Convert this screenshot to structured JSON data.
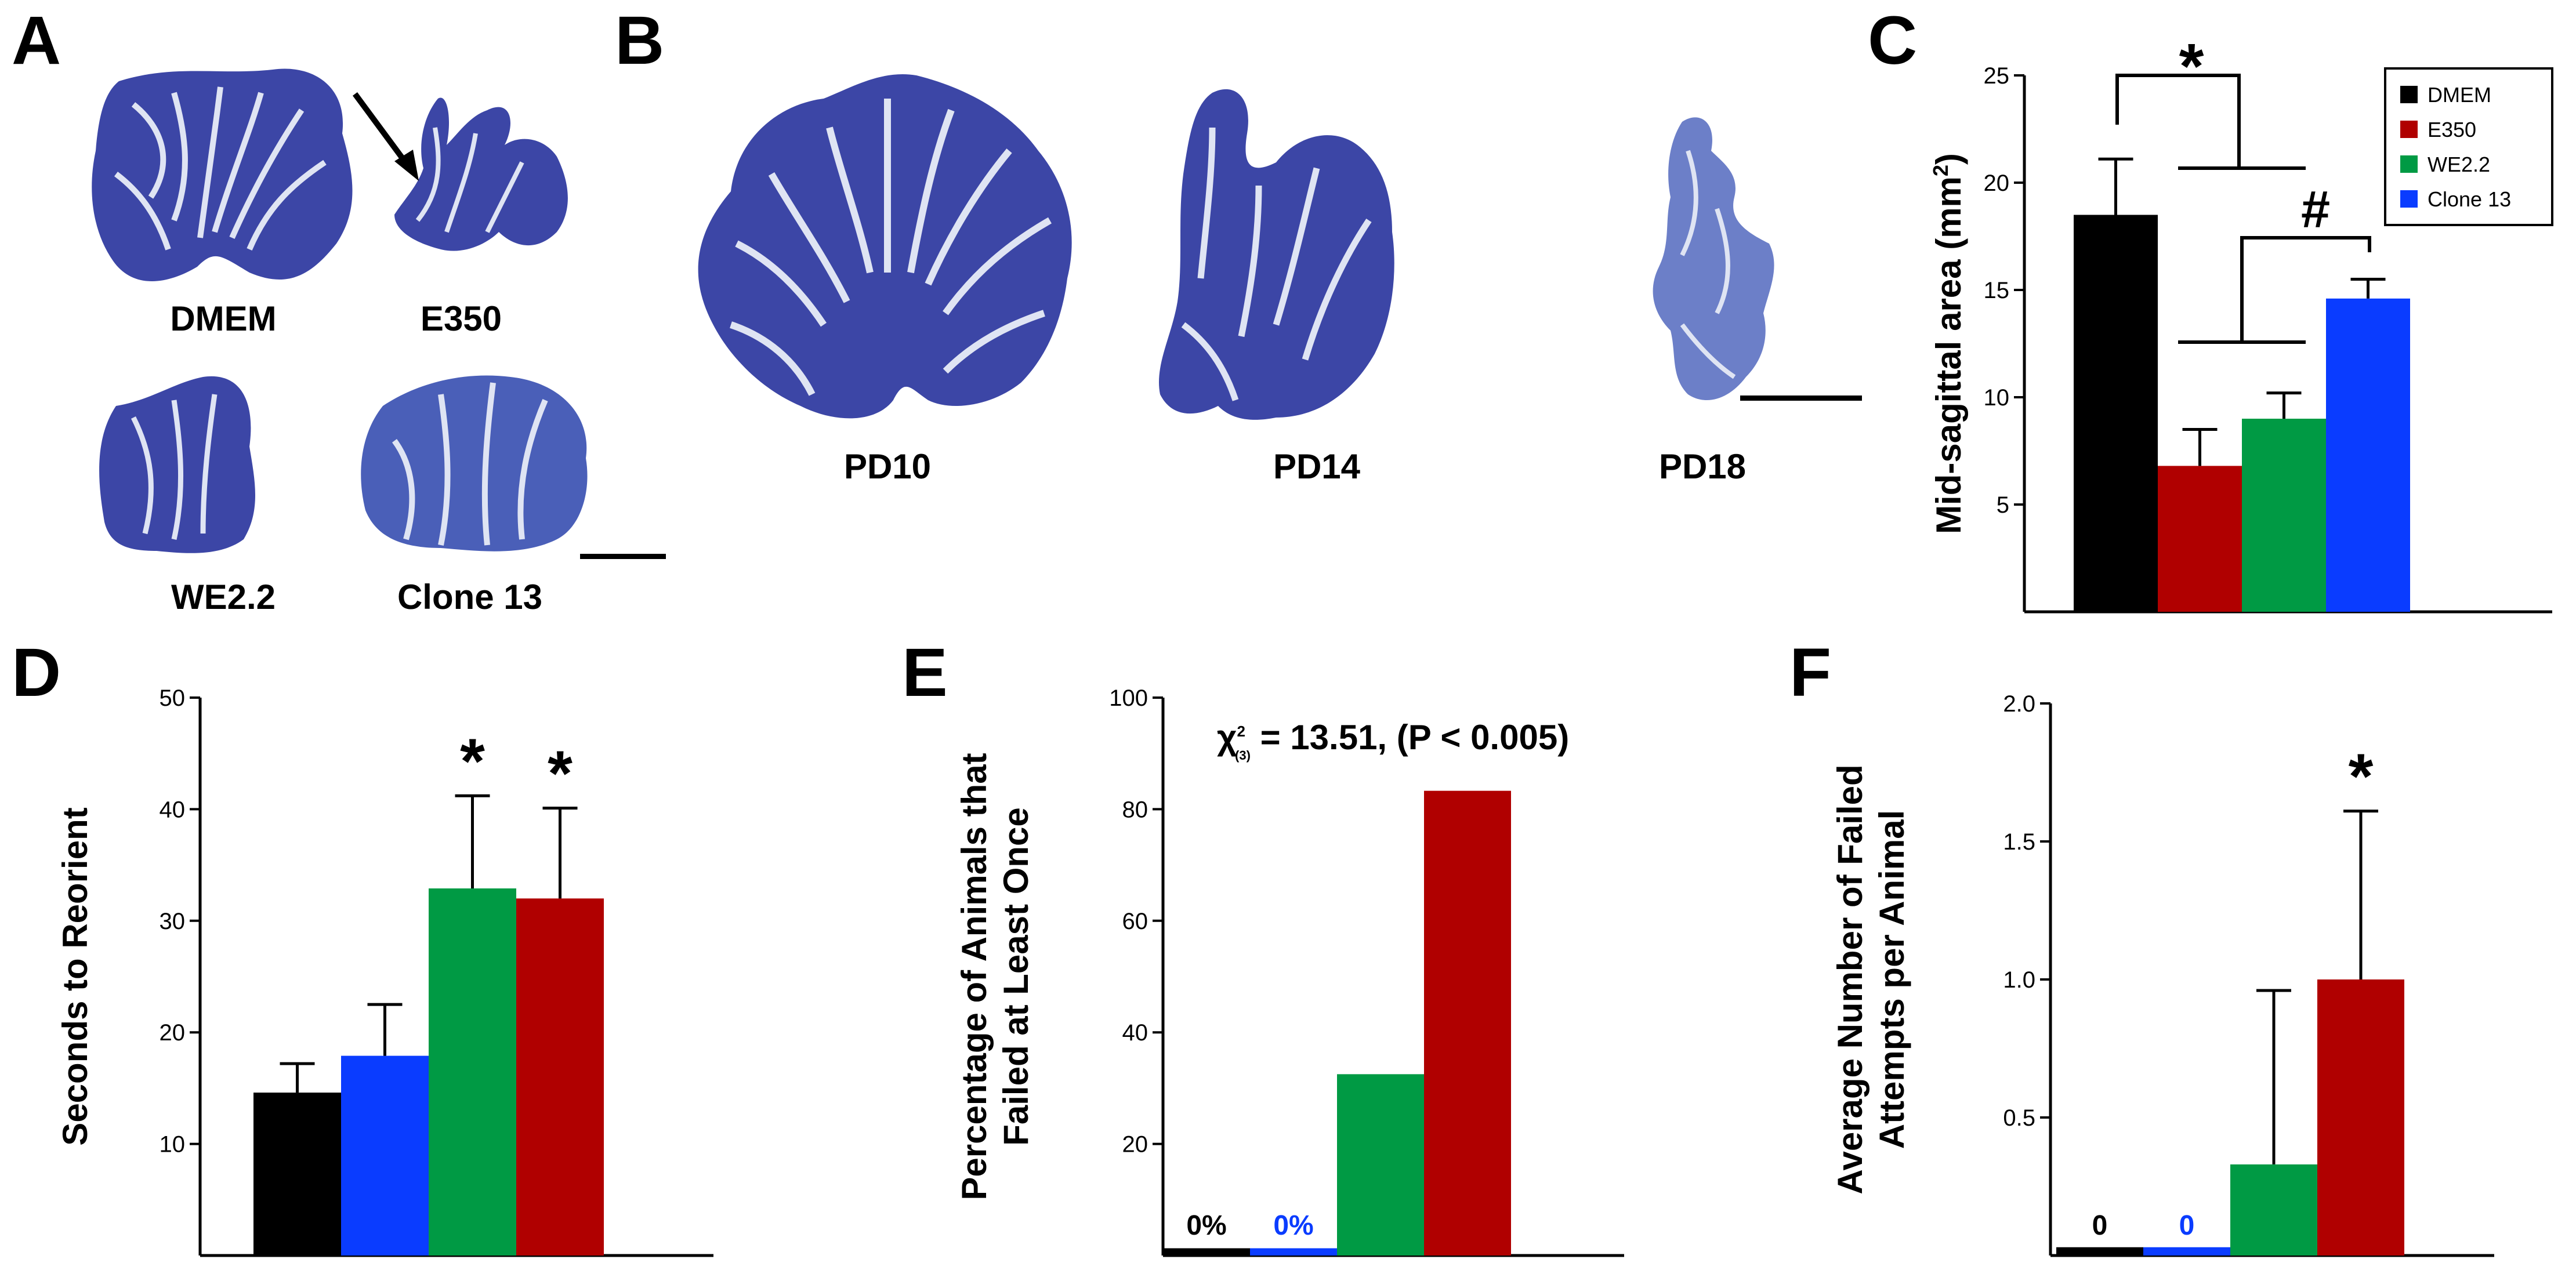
{
  "panel_labels": {
    "a": "A",
    "b": "B",
    "c": "C",
    "d": "D",
    "e": "E",
    "f": "F"
  },
  "panel_a": {
    "captions": [
      "DMEM",
      "E350",
      "WE2.2",
      "Clone 13"
    ]
  },
  "panel_b": {
    "captions": [
      "PD10",
      "PD14",
      "PD18"
    ]
  },
  "colors": {
    "DMEM": "#000000",
    "E350": "#b00000",
    "WE2.2": "#009a44",
    "Clone 13": "#0a3cff",
    "tissue": "#3c46a6",
    "tissue_light": "#6c7fc8",
    "layer": "#dfe4f3"
  },
  "chart_data": [
    {
      "panel": "C",
      "type": "bar",
      "categories": [
        "DMEM",
        "E350",
        "WE2.2",
        "Clone 13"
      ],
      "values": [
        18.5,
        6.8,
        9.0,
        14.6
      ],
      "errors": [
        2.6,
        1.7,
        1.2,
        0.9
      ],
      "colors": [
        "#000000",
        "#b00000",
        "#009a44",
        "#0a3cff"
      ],
      "ylabel": "Mid-sagittal area (mm",
      "ylabel_sup": "2",
      "ylabel_end": ")",
      "ylim": [
        0,
        25
      ],
      "yticks": [
        5,
        10,
        15,
        20,
        25
      ],
      "legend": [
        "DMEM",
        "E350",
        "WE2.2",
        "Clone 13"
      ],
      "legend_position": "top-right",
      "annotations": [
        "*",
        "#"
      ]
    },
    {
      "panel": "D",
      "type": "bar",
      "categories": [
        "DMEM",
        "Clone 13",
        "WE2.2",
        "E350"
      ],
      "values": [
        14.6,
        17.9,
        32.9,
        32.0
      ],
      "errors": [
        2.6,
        4.6,
        8.3,
        8.1
      ],
      "colors": [
        "#000000",
        "#0a3cff",
        "#009a44",
        "#b00000"
      ],
      "ylabel": "Seconds to Reorient",
      "ylim": [
        0,
        50
      ],
      "yticks": [
        10,
        20,
        30,
        40,
        50
      ],
      "significance": [
        "",
        "",
        "*",
        "*"
      ]
    },
    {
      "panel": "E",
      "type": "bar",
      "categories": [
        "DMEM",
        "Clone 13",
        "WE2.2",
        "E350"
      ],
      "values": [
        0,
        0,
        32.5,
        83.3
      ],
      "colors": [
        "#000000",
        "#0a3cff",
        "#009a44",
        "#b00000"
      ],
      "ylabel_lines": [
        "Percentage of Animals that",
        "Failed at Least Once"
      ],
      "ylim": [
        0,
        100
      ],
      "yticks": [
        20,
        40,
        60,
        80,
        100
      ],
      "bar_labels": [
        "0%",
        "0%",
        "",
        ""
      ],
      "stat_prefix": "χ",
      "stat_sup": "2",
      "stat_sub": "(3)",
      "stat_text": " = 13.51, (P < 0.005)"
    },
    {
      "panel": "F",
      "type": "bar",
      "categories": [
        "DMEM",
        "Clone 13",
        "WE2.2",
        "E350"
      ],
      "values": [
        0,
        0,
        0.33,
        1.0
      ],
      "errors": [
        0,
        0,
        0.63,
        0.61
      ],
      "colors": [
        "#000000",
        "#0a3cff",
        "#009a44",
        "#b00000"
      ],
      "ylabel_lines": [
        "Average Number of Failed",
        "Attempts per Animal"
      ],
      "ylim": [
        0,
        2.0
      ],
      "yticks": [
        "0.5",
        "1.0",
        "1.5",
        "2.0"
      ],
      "bar_labels": [
        "0",
        "0",
        "",
        ""
      ],
      "significance": [
        "",
        "",
        "",
        "*"
      ]
    }
  ]
}
